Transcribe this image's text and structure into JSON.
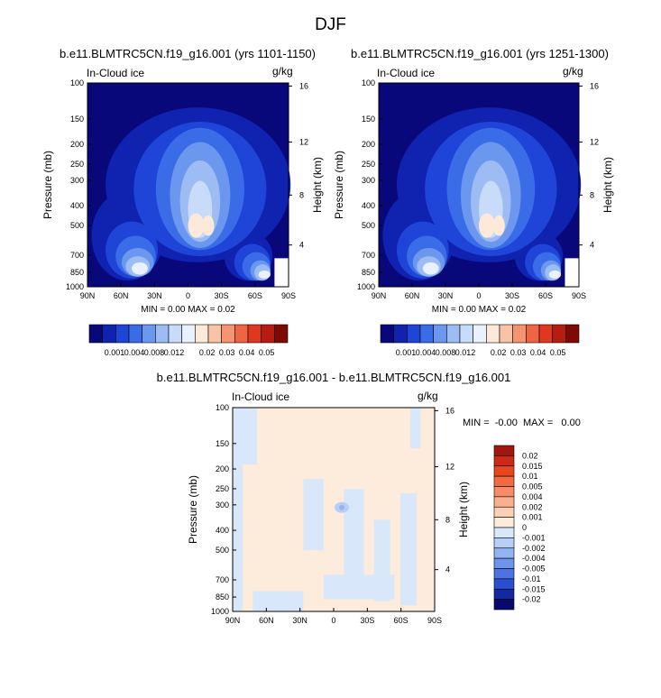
{
  "page_title": "DJF",
  "chart_data": [
    {
      "type": "heatmap",
      "title": "b.e11.BLMTRC5CN.f19_g16.001 (yrs 1101-1150)",
      "left_label": "In-Cloud ice",
      "units": "g/kg",
      "xlabel": "",
      "ylabel": "Pressure (mb)",
      "y2label": "Height (km)",
      "x_ticks": [
        "90N",
        "60N",
        "30N",
        "0",
        "30S",
        "60S",
        "90S"
      ],
      "y_ticks": [
        "100",
        "150",
        "200",
        "250",
        "300",
        "400",
        "500",
        "700",
        "850",
        "1000"
      ],
      "y2_ticks": [
        "16",
        "12",
        "8",
        "4"
      ],
      "stats_text": "MIN =   0.00  MAX =   0.02",
      "min": 0.0,
      "max": 0.02,
      "colorbar": {
        "orientation": "horizontal",
        "labels": [
          "0.001",
          "0.004",
          "0.008",
          "0.012",
          "0.02",
          "0.03",
          "0.04",
          "0.05"
        ],
        "colors": [
          "#08087a",
          "#0f22b0",
          "#1f45d8",
          "#3b6ce8",
          "#6b97ef",
          "#9dbcf4",
          "#c8dbf8",
          "#e8f1fd",
          "#fde9d9",
          "#f9c4a6",
          "#f59470",
          "#ef6442",
          "#e0371f",
          "#b71c10",
          "#7e0a06"
        ]
      }
    },
    {
      "type": "heatmap",
      "title": "b.e11.BLMTRC5CN.f19_g16.001 (yrs 1251-1300)",
      "left_label": "In-Cloud ice",
      "units": "g/kg",
      "xlabel": "",
      "ylabel": "Pressure (mb)",
      "y2label": "Height (km)",
      "x_ticks": [
        "90N",
        "60N",
        "30N",
        "0",
        "30S",
        "60S",
        "90S"
      ],
      "y_ticks": [
        "100",
        "150",
        "200",
        "250",
        "300",
        "400",
        "500",
        "700",
        "850",
        "1000"
      ],
      "y2_ticks": [
        "16",
        "12",
        "8",
        "4"
      ],
      "stats_text": "MIN =   0.00  MAX =   0.02",
      "min": 0.0,
      "max": 0.02,
      "colorbar": {
        "orientation": "horizontal",
        "labels": [
          "0.001",
          "0.004",
          "0.008",
          "0.012",
          "0.02",
          "0.03",
          "0.04",
          "0.05"
        ],
        "colors": [
          "#08087a",
          "#0f22b0",
          "#1f45d8",
          "#3b6ce8",
          "#6b97ef",
          "#9dbcf4",
          "#c8dbf8",
          "#e8f1fd",
          "#fde9d9",
          "#f9c4a6",
          "#f59470",
          "#ef6442",
          "#e0371f",
          "#b71c10",
          "#7e0a06"
        ]
      }
    },
    {
      "type": "heatmap",
      "title": "b.e11.BLMTRC5CN.f19_g16.001 - b.e11.BLMTRC5CN.f19_g16.001",
      "left_label": "In-Cloud ice",
      "units": "g/kg",
      "xlabel": "",
      "ylabel": "Pressure (mb)",
      "y2label": "Height (km)",
      "x_ticks": [
        "90N",
        "60N",
        "30N",
        "0",
        "30S",
        "60S",
        "90S"
      ],
      "y_ticks": [
        "100",
        "150",
        "200",
        "250",
        "300",
        "400",
        "500",
        "700",
        "850",
        "1000"
      ],
      "y2_ticks": [
        "16",
        "12",
        "8",
        "4"
      ],
      "stats_text": "MIN =  -0.00  MAX =   0.00",
      "min": -0.0,
      "max": 0.0,
      "colorbar": {
        "orientation": "vertical",
        "labels": [
          "0.02",
          "0.015",
          "0.01",
          "0.005",
          "0.004",
          "0.002",
          "0.001",
          "0",
          "-0.001",
          "-0.002",
          "-0.004",
          "-0.005",
          "-0.01",
          "-0.015",
          "-0.02"
        ],
        "colors": [
          "#a3160e",
          "#cc2a17",
          "#e8461f",
          "#f4693f",
          "#f88c68",
          "#fab08f",
          "#fcd0b6",
          "#fdebdc",
          "#d8e8fa",
          "#b7cff6",
          "#94b4f1",
          "#6e94ec",
          "#4c73e3",
          "#2c4fd0",
          "#14289f",
          "#070a6b"
        ]
      }
    }
  ]
}
